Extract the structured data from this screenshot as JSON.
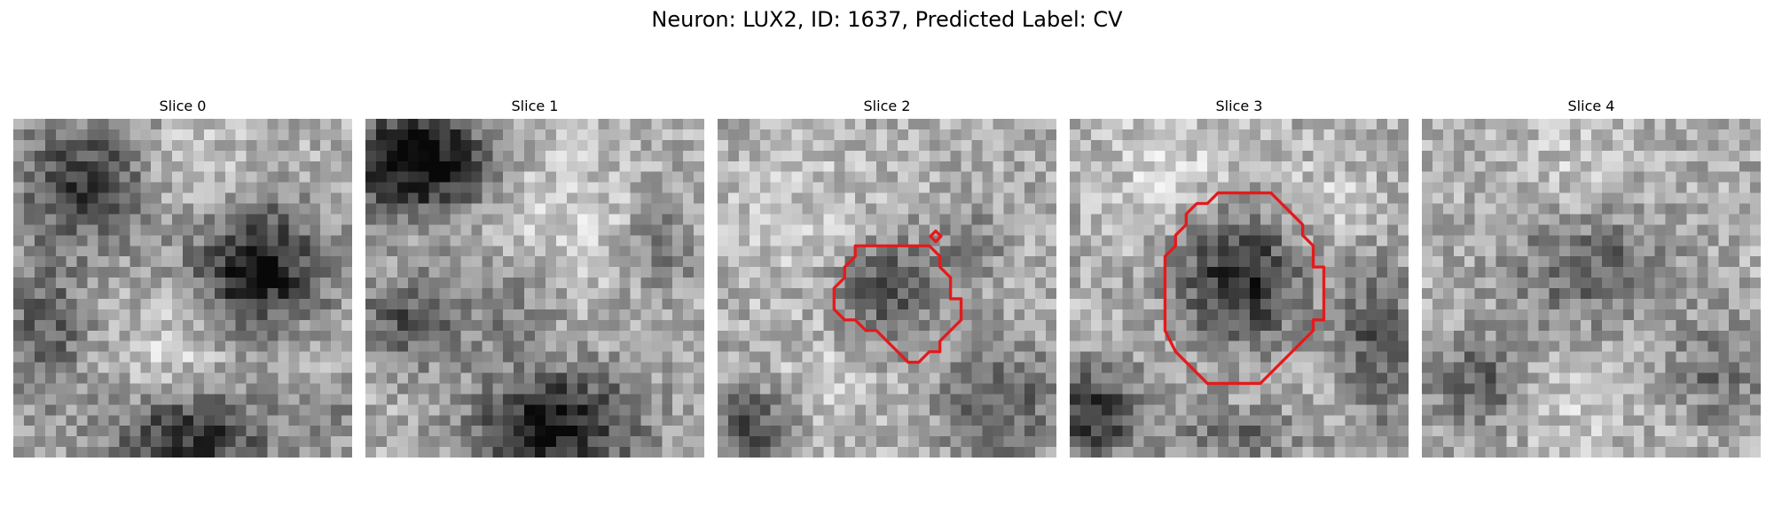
{
  "figure": {
    "title": "Neuron: LUX2, ID: 1637, Predicted Label: CV",
    "grid_size": 32,
    "colormap": "gray",
    "contour_color": "#e41a1c"
  },
  "panels": [
    {
      "title": "Slice 0",
      "blobs": [
        {
          "cx": 7,
          "cy": 6,
          "rx": 8,
          "ry": 7,
          "depth": 0.45
        },
        {
          "cx": 23,
          "cy": 14,
          "rx": 7.5,
          "ry": 7,
          "depth": 0.6
        },
        {
          "cx": 17,
          "cy": 30,
          "rx": 9,
          "ry": 5,
          "depth": 0.5
        },
        {
          "cx": 3,
          "cy": 20,
          "rx": 5,
          "ry": 8,
          "depth": 0.3
        },
        {
          "cx": 30,
          "cy": 28,
          "rx": 3,
          "ry": 3,
          "depth": 0.2
        }
      ],
      "brights": [
        {
          "cx": 16,
          "cy": 6,
          "r": 6,
          "amt": 0.15
        },
        {
          "cx": 15,
          "cy": 22,
          "r": 5,
          "amt": 0.15
        }
      ],
      "contours": []
    },
    {
      "title": "Slice 1",
      "blobs": [
        {
          "cx": 5,
          "cy": 4,
          "rx": 8,
          "ry": 6,
          "depth": 0.7
        },
        {
          "cx": 18,
          "cy": 29,
          "rx": 9,
          "ry": 6,
          "depth": 0.6
        },
        {
          "cx": 4,
          "cy": 19,
          "rx": 6,
          "ry": 5,
          "depth": 0.35
        },
        {
          "cx": 14,
          "cy": 18,
          "rx": 5,
          "ry": 5,
          "depth": 0.2
        },
        {
          "cx": 28,
          "cy": 12,
          "rx": 4,
          "ry": 5,
          "depth": 0.2
        }
      ],
      "brights": [
        {
          "cx": 18,
          "cy": 9,
          "r": 7,
          "amt": 0.15
        }
      ],
      "contours": []
    },
    {
      "title": "Slice 2",
      "blobs": [
        {
          "cx": 16,
          "cy": 16,
          "rx": 6,
          "ry": 6,
          "depth": 0.35
        },
        {
          "cx": 3,
          "cy": 29,
          "rx": 5,
          "ry": 5,
          "depth": 0.35
        },
        {
          "cx": 27,
          "cy": 27,
          "rx": 7,
          "ry": 7,
          "depth": 0.3
        },
        {
          "cx": 24,
          "cy": 12,
          "rx": 3,
          "ry": 3,
          "depth": 0.25
        }
      ],
      "brights": [
        {
          "cx": 8,
          "cy": 10,
          "r": 7,
          "amt": 0.12
        },
        {
          "cx": 10,
          "cy": 25,
          "r": 5,
          "amt": 0.12
        }
      ],
      "contours": [
        {
          "points": [
            [
              13,
              12
            ],
            [
              20,
              12
            ],
            [
              21,
              13
            ],
            [
              21,
              14
            ],
            [
              22,
              15
            ],
            [
              22,
              16
            ],
            [
              22,
              17
            ],
            [
              23,
              17
            ],
            [
              23,
              19
            ],
            [
              22,
              20
            ],
            [
              21,
              21
            ],
            [
              21,
              22
            ],
            [
              20,
              22
            ],
            [
              19,
              23
            ],
            [
              18,
              23
            ],
            [
              17,
              22
            ],
            [
              16,
              21
            ],
            [
              15,
              20
            ],
            [
              14,
              20
            ],
            [
              13,
              19
            ],
            [
              12,
              19
            ],
            [
              11,
              18
            ],
            [
              11,
              17
            ],
            [
              11,
              16
            ],
            [
              12,
              15
            ],
            [
              12,
              14
            ],
            [
              13,
              13
            ]
          ]
        },
        {
          "points": [
            [
              20.6,
              10.6
            ],
            [
              21.1,
              11.1
            ],
            [
              20.6,
              11.6
            ],
            [
              20.1,
              11.1
            ]
          ]
        }
      ]
    },
    {
      "title": "Slice 3",
      "blobs": [
        {
          "cx": 16,
          "cy": 15,
          "rx": 7,
          "ry": 7.5,
          "depth": 0.55
        },
        {
          "cx": 2,
          "cy": 28,
          "rx": 6,
          "ry": 5,
          "depth": 0.5
        },
        {
          "cx": 29,
          "cy": 21,
          "rx": 4,
          "ry": 9,
          "depth": 0.35
        },
        {
          "cx": 16,
          "cy": 30,
          "rx": 7,
          "ry": 3,
          "depth": 0.25
        }
      ],
      "brights": [
        {
          "cx": 10,
          "cy": 5,
          "r": 7,
          "amt": 0.15
        },
        {
          "cx": 24,
          "cy": 8,
          "r": 5,
          "amt": 0.12
        }
      ],
      "contours": [
        {
          "points": [
            [
              12,
              8
            ],
            [
              13,
              8
            ],
            [
              14,
              7
            ],
            [
              19,
              7
            ],
            [
              20,
              8
            ],
            [
              21,
              9
            ],
            [
              22,
              10
            ],
            [
              22,
              11
            ],
            [
              23,
              12
            ],
            [
              23,
              14
            ],
            [
              24,
              14
            ],
            [
              24,
              19
            ],
            [
              23,
              19
            ],
            [
              23,
              20
            ],
            [
              22,
              21
            ],
            [
              21,
              22
            ],
            [
              20,
              23
            ],
            [
              19,
              24
            ],
            [
              18,
              25
            ],
            [
              15,
              25
            ],
            [
              13,
              25
            ],
            [
              12,
              24
            ],
            [
              11,
              23
            ],
            [
              10,
              22
            ],
            [
              9,
              20
            ],
            [
              9,
              19
            ],
            [
              9,
              18
            ],
            [
              9,
              14
            ],
            [
              9,
              13
            ],
            [
              10,
              12
            ],
            [
              10,
              11
            ],
            [
              11,
              10
            ],
            [
              11,
              9
            ]
          ]
        }
      ]
    },
    {
      "title": "Slice 4",
      "blobs": [
        {
          "cx": 16,
          "cy": 14,
          "rx": 9,
          "ry": 6,
          "depth": 0.3
        },
        {
          "cx": 5,
          "cy": 25,
          "rx": 5,
          "ry": 5,
          "depth": 0.3
        },
        {
          "cx": 28,
          "cy": 24,
          "rx": 5,
          "ry": 6,
          "depth": 0.25
        }
      ],
      "brights": [
        {
          "cx": 14,
          "cy": 4,
          "r": 6,
          "amt": 0.1
        },
        {
          "cx": 15,
          "cy": 28,
          "r": 5,
          "amt": 0.1
        }
      ],
      "contours": []
    }
  ]
}
